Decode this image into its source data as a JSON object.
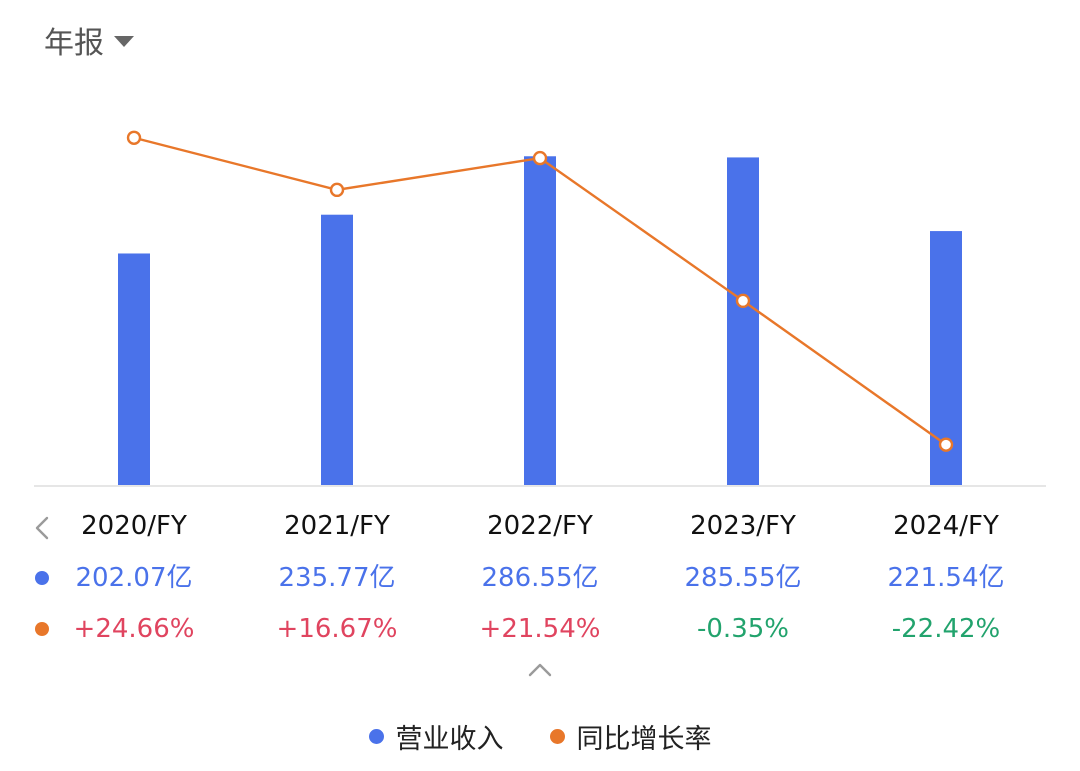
{
  "header": {
    "period_label": "年报",
    "dropdown_icon": "caret-down-icon"
  },
  "colors": {
    "revenue": "#4a72ea",
    "growth": "#e8772a",
    "positive": "#e0445f",
    "negative": "#22a36d"
  },
  "table": {
    "prev_icon": "chevron-left-icon",
    "years": [
      "2020/FY",
      "2021/FY",
      "2022/FY",
      "2023/FY",
      "2024/FY"
    ],
    "revenue": [
      "202.07亿",
      "235.77亿",
      "286.55亿",
      "285.55亿",
      "221.54亿"
    ],
    "growth": [
      "+24.66%",
      "+16.67%",
      "+21.54%",
      "-0.35%",
      "-22.42%"
    ],
    "collapse_icon": "chevron-up-icon"
  },
  "legend": {
    "revenue_label": "营业收入",
    "growth_label": "同比增长率"
  },
  "chart_data": {
    "type": "bar",
    "categories": [
      "2020/FY",
      "2021/FY",
      "2022/FY",
      "2023/FY",
      "2024/FY"
    ],
    "series": [
      {
        "name": "营业收入",
        "type": "bar",
        "unit": "亿",
        "values": [
          202.07,
          235.77,
          286.55,
          285.55,
          221.54
        ]
      },
      {
        "name": "同比增长率",
        "type": "line",
        "unit": "%",
        "values": [
          24.66,
          16.67,
          21.54,
          -0.35,
          -22.42
        ]
      }
    ],
    "legend_position": "bottom",
    "grid": false
  }
}
